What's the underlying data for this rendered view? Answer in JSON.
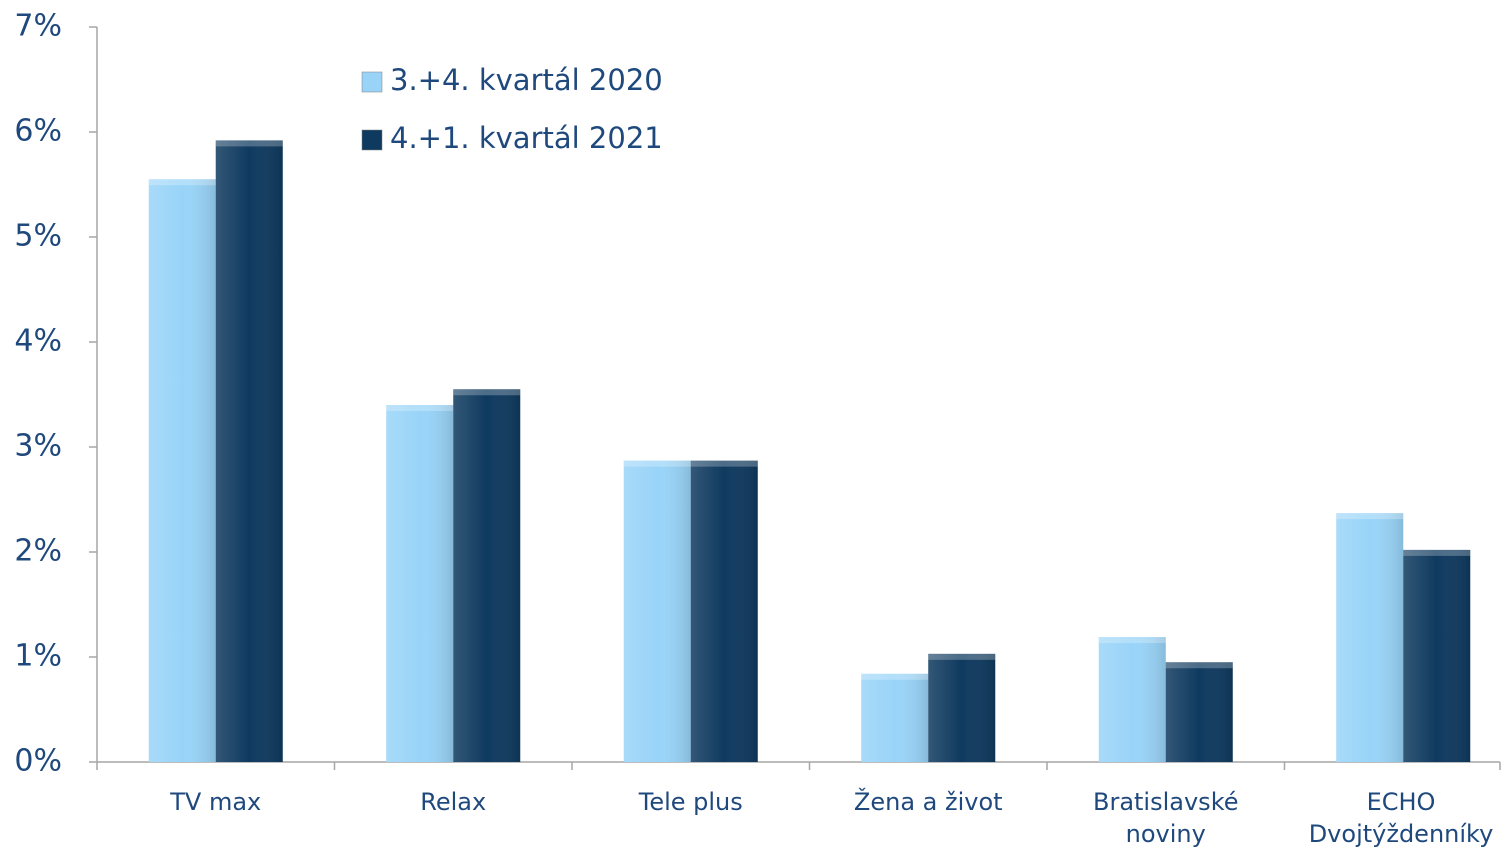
{
  "chart_data": {
    "type": "bar",
    "categories": [
      "TV max",
      "Relax",
      "Tele plus",
      "Žena a život",
      "Bratislavské noviny",
      "ECHO Dvojtýždenníky"
    ],
    "series": [
      {
        "name": "3.+4. kvartál 2020",
        "color": "#99d4f8",
        "values": [
          5.55,
          3.4,
          2.87,
          0.84,
          1.19,
          2.37
        ]
      },
      {
        "name": "4.+1. kvartál 2021",
        "color": "#0f3a5f",
        "values": [
          5.92,
          3.55,
          2.87,
          1.03,
          0.95,
          2.02
        ]
      }
    ],
    "ylim": [
      0,
      7
    ],
    "yticks": [
      {
        "value": 0,
        "label": "0%"
      },
      {
        "value": 1,
        "label": "1%"
      },
      {
        "value": 2,
        "label": "2%"
      },
      {
        "value": 3,
        "label": "3%"
      },
      {
        "value": 4,
        "label": "4%"
      },
      {
        "value": 5,
        "label": "5%"
      },
      {
        "value": 6,
        "label": "6%"
      },
      {
        "value": 7,
        "label": "7%"
      }
    ],
    "grid": false,
    "legend": "top-left"
  }
}
